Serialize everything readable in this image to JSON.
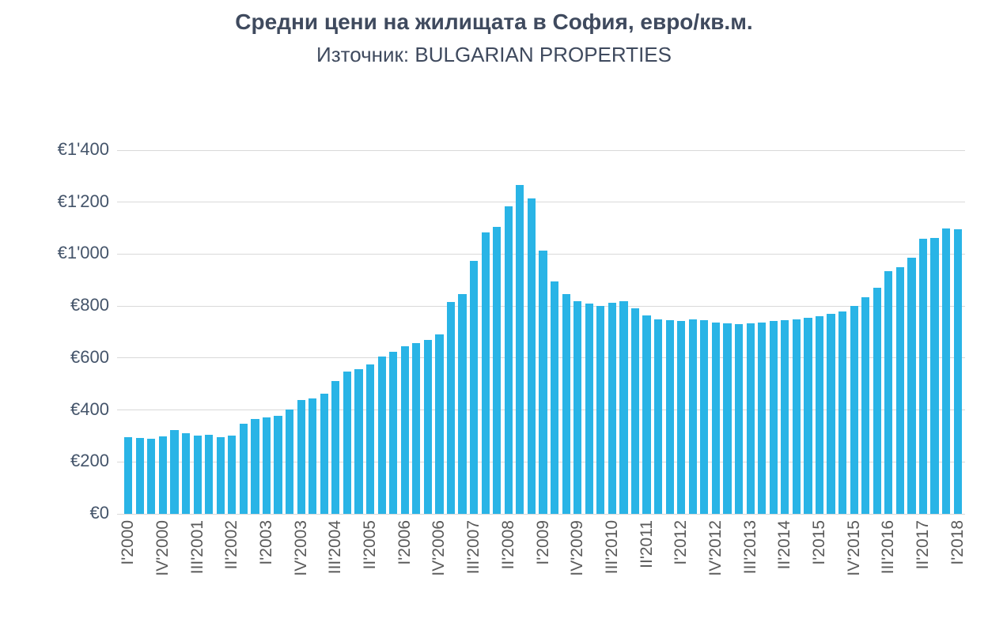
{
  "title": "Средни цени на жилищата в София, евро/кв.м.",
  "subtitle": "Източник: BULGARIAN PROPERTIES",
  "colors": {
    "bars": "#29b4e6",
    "title": "#3f4a5e",
    "axis_labels": "#595959",
    "y_labels": "#44546a",
    "gridline": "#d9d9d9",
    "background": "#ffffff"
  },
  "chart_data": {
    "type": "bar",
    "title": "Средни цени на жилищата в София, евро/кв.м.",
    "subtitle": "Източник: BULGARIAN PROPERTIES",
    "unit": "EUR per sq.m.",
    "ylim": [
      0,
      1400
    ],
    "grid": true,
    "legend": "none",
    "y_ticks": [
      0,
      200,
      400,
      600,
      800,
      1000,
      1200,
      1400
    ],
    "y_tick_labels": [
      "€0",
      "€200",
      "€400",
      "€600",
      "€800",
      "€1'000",
      "€1'200",
      "€1'400"
    ],
    "x_tick_every": 3,
    "x_tick_labels": [
      "I'2000",
      "IV'2000",
      "III'2001",
      "II'2002",
      "I'2003",
      "IV'2003",
      "III'2004",
      "II'2005",
      "I'2006",
      "IV'2006",
      "III'2007",
      "II'2008",
      "I'2009",
      "IV'2009",
      "III'2010",
      "II'2011",
      "I'2012",
      "IV'2012",
      "III'2013",
      "II'2014",
      "I'2015",
      "IV'2015",
      "III'2016",
      "II'2017",
      "I'2018"
    ],
    "categories": [
      "I'2000",
      "II'2000",
      "III'2000",
      "IV'2000",
      "I'2001",
      "II'2001",
      "III'2001",
      "IV'2001",
      "I'2002",
      "II'2002",
      "III'2002",
      "IV'2002",
      "I'2003",
      "II'2003",
      "III'2003",
      "IV'2003",
      "I'2004",
      "II'2004",
      "III'2004",
      "IV'2004",
      "I'2005",
      "II'2005",
      "III'2005",
      "IV'2005",
      "I'2006",
      "II'2006",
      "III'2006",
      "IV'2006",
      "I'2007",
      "II'2007",
      "III'2007",
      "IV'2007",
      "I'2008",
      "II'2008",
      "III'2008",
      "IV'2008",
      "I'2009",
      "II'2009",
      "III'2009",
      "IV'2009",
      "I'2010",
      "II'2010",
      "III'2010",
      "IV'2010",
      "I'2011",
      "II'2011",
      "III'2011",
      "IV'2011",
      "I'2012",
      "II'2012",
      "III'2012",
      "IV'2012",
      "I'2013",
      "II'2013",
      "III'2013",
      "IV'2013",
      "I'2014",
      "II'2014",
      "III'2014",
      "IV'2014",
      "I'2015",
      "II'2015",
      "III'2015",
      "IV'2015",
      "I'2016",
      "II'2016",
      "III'2016",
      "IV'2016",
      "I'2017",
      "II'2017",
      "III'2017",
      "IV'2017",
      "I'2018"
    ],
    "values": [
      295,
      292,
      290,
      298,
      322,
      310,
      301,
      305,
      296,
      300,
      347,
      365,
      372,
      378,
      403,
      437,
      443,
      462,
      512,
      547,
      556,
      576,
      606,
      625,
      645,
      658,
      670,
      690,
      815,
      845,
      975,
      1082,
      1105,
      1185,
      1265,
      1215,
      1015,
      895,
      845,
      820,
      810,
      800,
      812,
      818,
      790,
      763,
      750,
      745,
      743,
      748,
      745,
      738,
      732,
      730,
      734,
      738,
      742,
      746,
      750,
      754,
      762,
      770,
      778,
      800,
      835,
      870,
      935,
      950,
      985,
      1058,
      1062,
      1098,
      1096
    ]
  }
}
